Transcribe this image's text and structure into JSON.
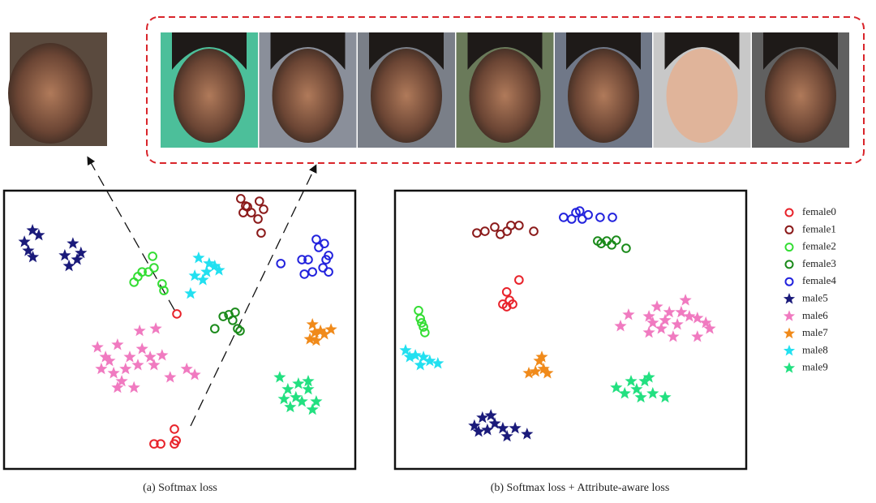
{
  "chart_data": [
    {
      "type": "scatter",
      "caption": "(a) Softmax loss",
      "xlim": [
        0,
        100
      ],
      "ylim": [
        0,
        100
      ],
      "series": [
        {
          "name": "female0",
          "color": "#e8222a",
          "marker": "circle",
          "x": [
            42.7,
            44.6,
            48.5,
            49.0,
            48.5,
            49.2
          ],
          "y": [
            9.0,
            9.0,
            9.0,
            10.2,
            14.3,
            55.7
          ]
        },
        {
          "name": "female1",
          "color": "#8b1a1a",
          "marker": "circle",
          "x": [
            67.4,
            68.8,
            72.7,
            68.1,
            70.4,
            72.3,
            73.2,
            69.3,
            73.9
          ],
          "y": [
            97.1,
            94.5,
            96.2,
            92.1,
            92.1,
            89.8,
            84.8,
            94.2,
            93.3
          ]
        },
        {
          "name": "female2",
          "color": "#33dd33",
          "marker": "circle",
          "x": [
            37.0,
            39.3,
            41.1,
            42.3,
            42.7,
            45.0,
            45.5,
            38.1
          ],
          "y": [
            67.1,
            70.8,
            70.8,
            76.4,
            72.3,
            66.5,
            64.1,
            69.1
          ]
        },
        {
          "name": "female3",
          "color": "#1a8a1a",
          "marker": "circle",
          "x": [
            60.0,
            62.4,
            64.0,
            65.8,
            66.5,
            67.2,
            65.1
          ],
          "y": [
            50.4,
            54.8,
            55.4,
            56.3,
            50.4,
            49.6,
            53.4
          ]
        },
        {
          "name": "female4",
          "color": "#2222dd",
          "marker": "circle",
          "x": [
            78.8,
            84.8,
            86.6,
            88.9,
            91.2,
            92.4,
            85.5,
            87.8,
            92.4,
            90.8,
            89.6,
            91.7
          ],
          "y": [
            73.8,
            75.2,
            75.2,
            82.5,
            81.0,
            76.7,
            70.0,
            70.8,
            70.8,
            72.3,
            79.6,
            75.2
          ]
        },
        {
          "name": "male5",
          "color": "#1a1a7a",
          "marker": "star",
          "x": [
            5.8,
            8.1,
            9.9,
            6.9,
            8.2,
            17.3,
            19.6,
            20.8,
            18.5,
            21.9
          ],
          "y": [
            81.6,
            85.7,
            84.0,
            78.4,
            76.1,
            76.7,
            81.0,
            75.2,
            72.9,
            77.6
          ]
        },
        {
          "name": "male6",
          "color": "#f07ac0",
          "marker": "star",
          "x": [
            26.6,
            28.9,
            32.3,
            35.8,
            39.3,
            41.6,
            27.7,
            31.2,
            34.6,
            38.1,
            42.7,
            33.5,
            37.0,
            45.0,
            47.3,
            52.0,
            54.3,
            38.6,
            43.2,
            32.3,
            30.0
          ],
          "y": [
            43.7,
            40.2,
            44.6,
            40.2,
            43.1,
            40.2,
            35.9,
            34.4,
            35.9,
            37.3,
            37.3,
            31.5,
            29.2,
            40.8,
            32.9,
            35.9,
            33.8,
            49.6,
            50.4,
            29.2,
            38.8
          ]
        },
        {
          "name": "male7",
          "color": "#f08a1a",
          "marker": "star",
          "x": [
            87.8,
            90.1,
            93.1,
            87.1,
            88.9,
            91.2,
            88.5
          ],
          "y": [
            51.9,
            49.6,
            50.1,
            46.6,
            46.1,
            48.4,
            49.0
          ]
        },
        {
          "name": "male8",
          "color": "#22e0f0",
          "marker": "star",
          "x": [
            55.4,
            58.4,
            61.2,
            54.3,
            56.6,
            53.1,
            60.0,
            57.7
          ],
          "y": [
            75.8,
            73.8,
            71.4,
            69.4,
            67.9,
            63.0,
            72.9,
            70.8
          ]
        },
        {
          "name": "male9",
          "color": "#22e080",
          "marker": "star",
          "x": [
            78.5,
            86.6,
            80.8,
            83.1,
            79.7,
            84.8,
            88.9,
            86.6,
            81.5,
            87.8,
            83.8
          ],
          "y": [
            32.9,
            31.5,
            28.6,
            25.7,
            25.1,
            24.2,
            24.2,
            28.6,
            22.2,
            21.3,
            30.6
          ]
        }
      ]
    },
    {
      "type": "scatter",
      "caption": "(b) Softmax loss + Attribute-aware loss",
      "xlim": [
        0,
        100
      ],
      "ylim": [
        0,
        100
      ],
      "series": [
        {
          "color": "#e8222a",
          "marker": "circle",
          "x": [
            35.3,
            31.8,
            32.6,
            30.7,
            31.8,
            33.5
          ],
          "y": [
            67.9,
            63.6,
            60.6,
            59.2,
            58.3,
            59.2
          ]
        },
        {
          "color": "#8b1a1a",
          "marker": "circle",
          "x": [
            23.3,
            25.6,
            28.4,
            31.9,
            33.0,
            35.3,
            39.5,
            30.0
          ],
          "y": [
            84.8,
            85.4,
            86.9,
            85.4,
            87.5,
            87.5,
            85.4,
            84.3
          ]
        },
        {
          "color": "#33dd33",
          "marker": "circle",
          "x": [
            6.7,
            7.2,
            8.1,
            8.5,
            7.6
          ],
          "y": [
            56.9,
            54.0,
            51.0,
            49.0,
            52.5
          ]
        },
        {
          "color": "#1a8a1a",
          "marker": "circle",
          "x": [
            57.7,
            60.3,
            63.0,
            65.8,
            58.7,
            61.7
          ],
          "y": [
            81.9,
            81.9,
            82.2,
            79.3,
            81.0,
            80.5
          ]
        },
        {
          "color": "#2222dd",
          "marker": "circle",
          "x": [
            48.0,
            51.5,
            55.0,
            58.4,
            61.9,
            50.3,
            53.3,
            52.6
          ],
          "y": [
            90.4,
            92.1,
            91.3,
            90.4,
            90.4,
            89.8,
            89.8,
            92.7
          ]
        },
        {
          "color": "#1a1a7a",
          "marker": "star",
          "x": [
            22.6,
            24.9,
            27.3,
            28.4,
            23.8,
            30.7,
            34.2,
            37.6,
            31.9,
            26.3
          ],
          "y": [
            15.5,
            18.4,
            19.2,
            16.3,
            13.4,
            14.6,
            14.6,
            12.5,
            11.7,
            14.0
          ]
        },
        {
          "color": "#f07ac0",
          "marker": "star",
          "x": [
            66.5,
            64.2,
            72.3,
            74.6,
            78.1,
            82.7,
            83.8,
            80.4,
            86.1,
            89.6,
            75.8,
            79.2,
            86.1,
            72.3,
            76.9,
            81.5,
            88.5,
            73.4
          ],
          "y": [
            55.4,
            51.3,
            54.8,
            58.3,
            56.3,
            60.6,
            54.8,
            51.9,
            54.2,
            50.4,
            50.4,
            47.5,
            47.5,
            49.0,
            53.4,
            56.3,
            52.5,
            52.5
          ]
        },
        {
          "color": "#f08a1a",
          "marker": "star",
          "x": [
            41.1,
            40.0,
            42.3,
            43.4,
            38.1,
            41.8
          ],
          "y": [
            38.8,
            35.0,
            35.9,
            34.4,
            34.4,
            40.2
          ]
        },
        {
          "color": "#22e0f0",
          "marker": "star",
          "x": [
            3.0,
            5.8,
            8.1,
            7.2,
            12.2,
            9.9,
            4.2
          ],
          "y": [
            42.6,
            40.8,
            40.2,
            37.3,
            37.9,
            38.8,
            40.2
          ]
        },
        {
          "color": "#22e080",
          "marker": "star",
          "x": [
            63.0,
            65.4,
            68.8,
            72.3,
            70.0,
            73.4,
            76.9,
            67.2,
            71.1
          ],
          "y": [
            29.2,
            27.1,
            28.6,
            32.9,
            25.7,
            27.1,
            25.7,
            31.5,
            31.5
          ]
        }
      ]
    }
  ]
}
